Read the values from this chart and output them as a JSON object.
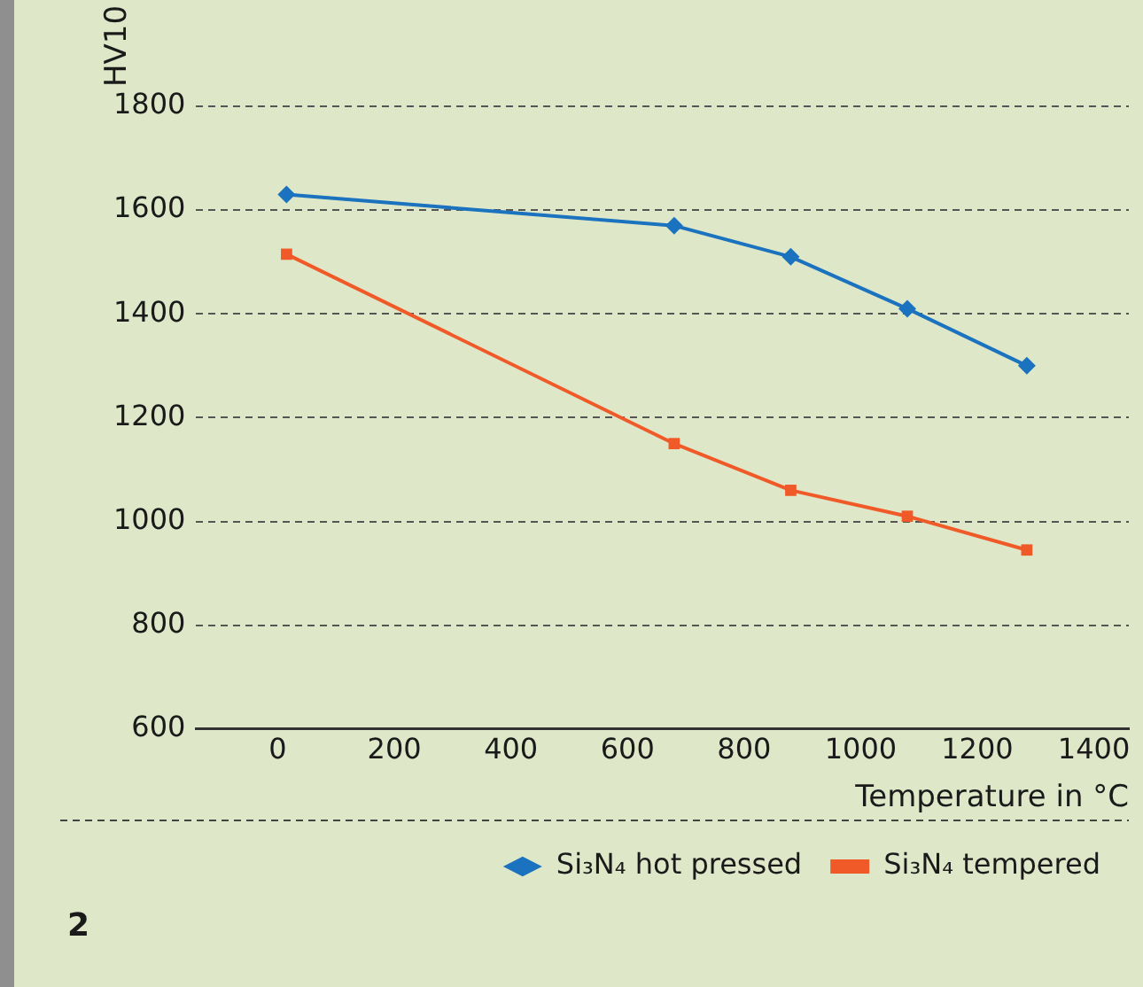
{
  "chart_data": {
    "type": "line",
    "ylabel": "HV10",
    "xlabel": "Temperature in °C",
    "series": [
      {
        "name": "Si₃N₄ hot pressed",
        "color": "#1b72be",
        "marker": "diamond",
        "x": [
          15,
          680,
          880,
          1080,
          1285
        ],
        "values": [
          1630,
          1570,
          1510,
          1410,
          1300
        ]
      },
      {
        "name": "Si₃N₄ tempered",
        "color": "#f05a28",
        "marker": "square",
        "x": [
          15,
          680,
          880,
          1080,
          1285
        ],
        "values": [
          1515,
          1150,
          1060,
          1010,
          945
        ]
      }
    ],
    "xlim": [
      -140,
      1460
    ],
    "xticks": [
      0,
      200,
      400,
      600,
      800,
      1000,
      1200,
      1400
    ],
    "ylim": [
      600,
      1800
    ],
    "yticks": [
      600,
      800,
      1000,
      1200,
      1400,
      1600,
      1800
    ],
    "grid": "y",
    "legend": "bottom right",
    "line_style": "solid",
    "annotations": [
      "2"
    ]
  }
}
